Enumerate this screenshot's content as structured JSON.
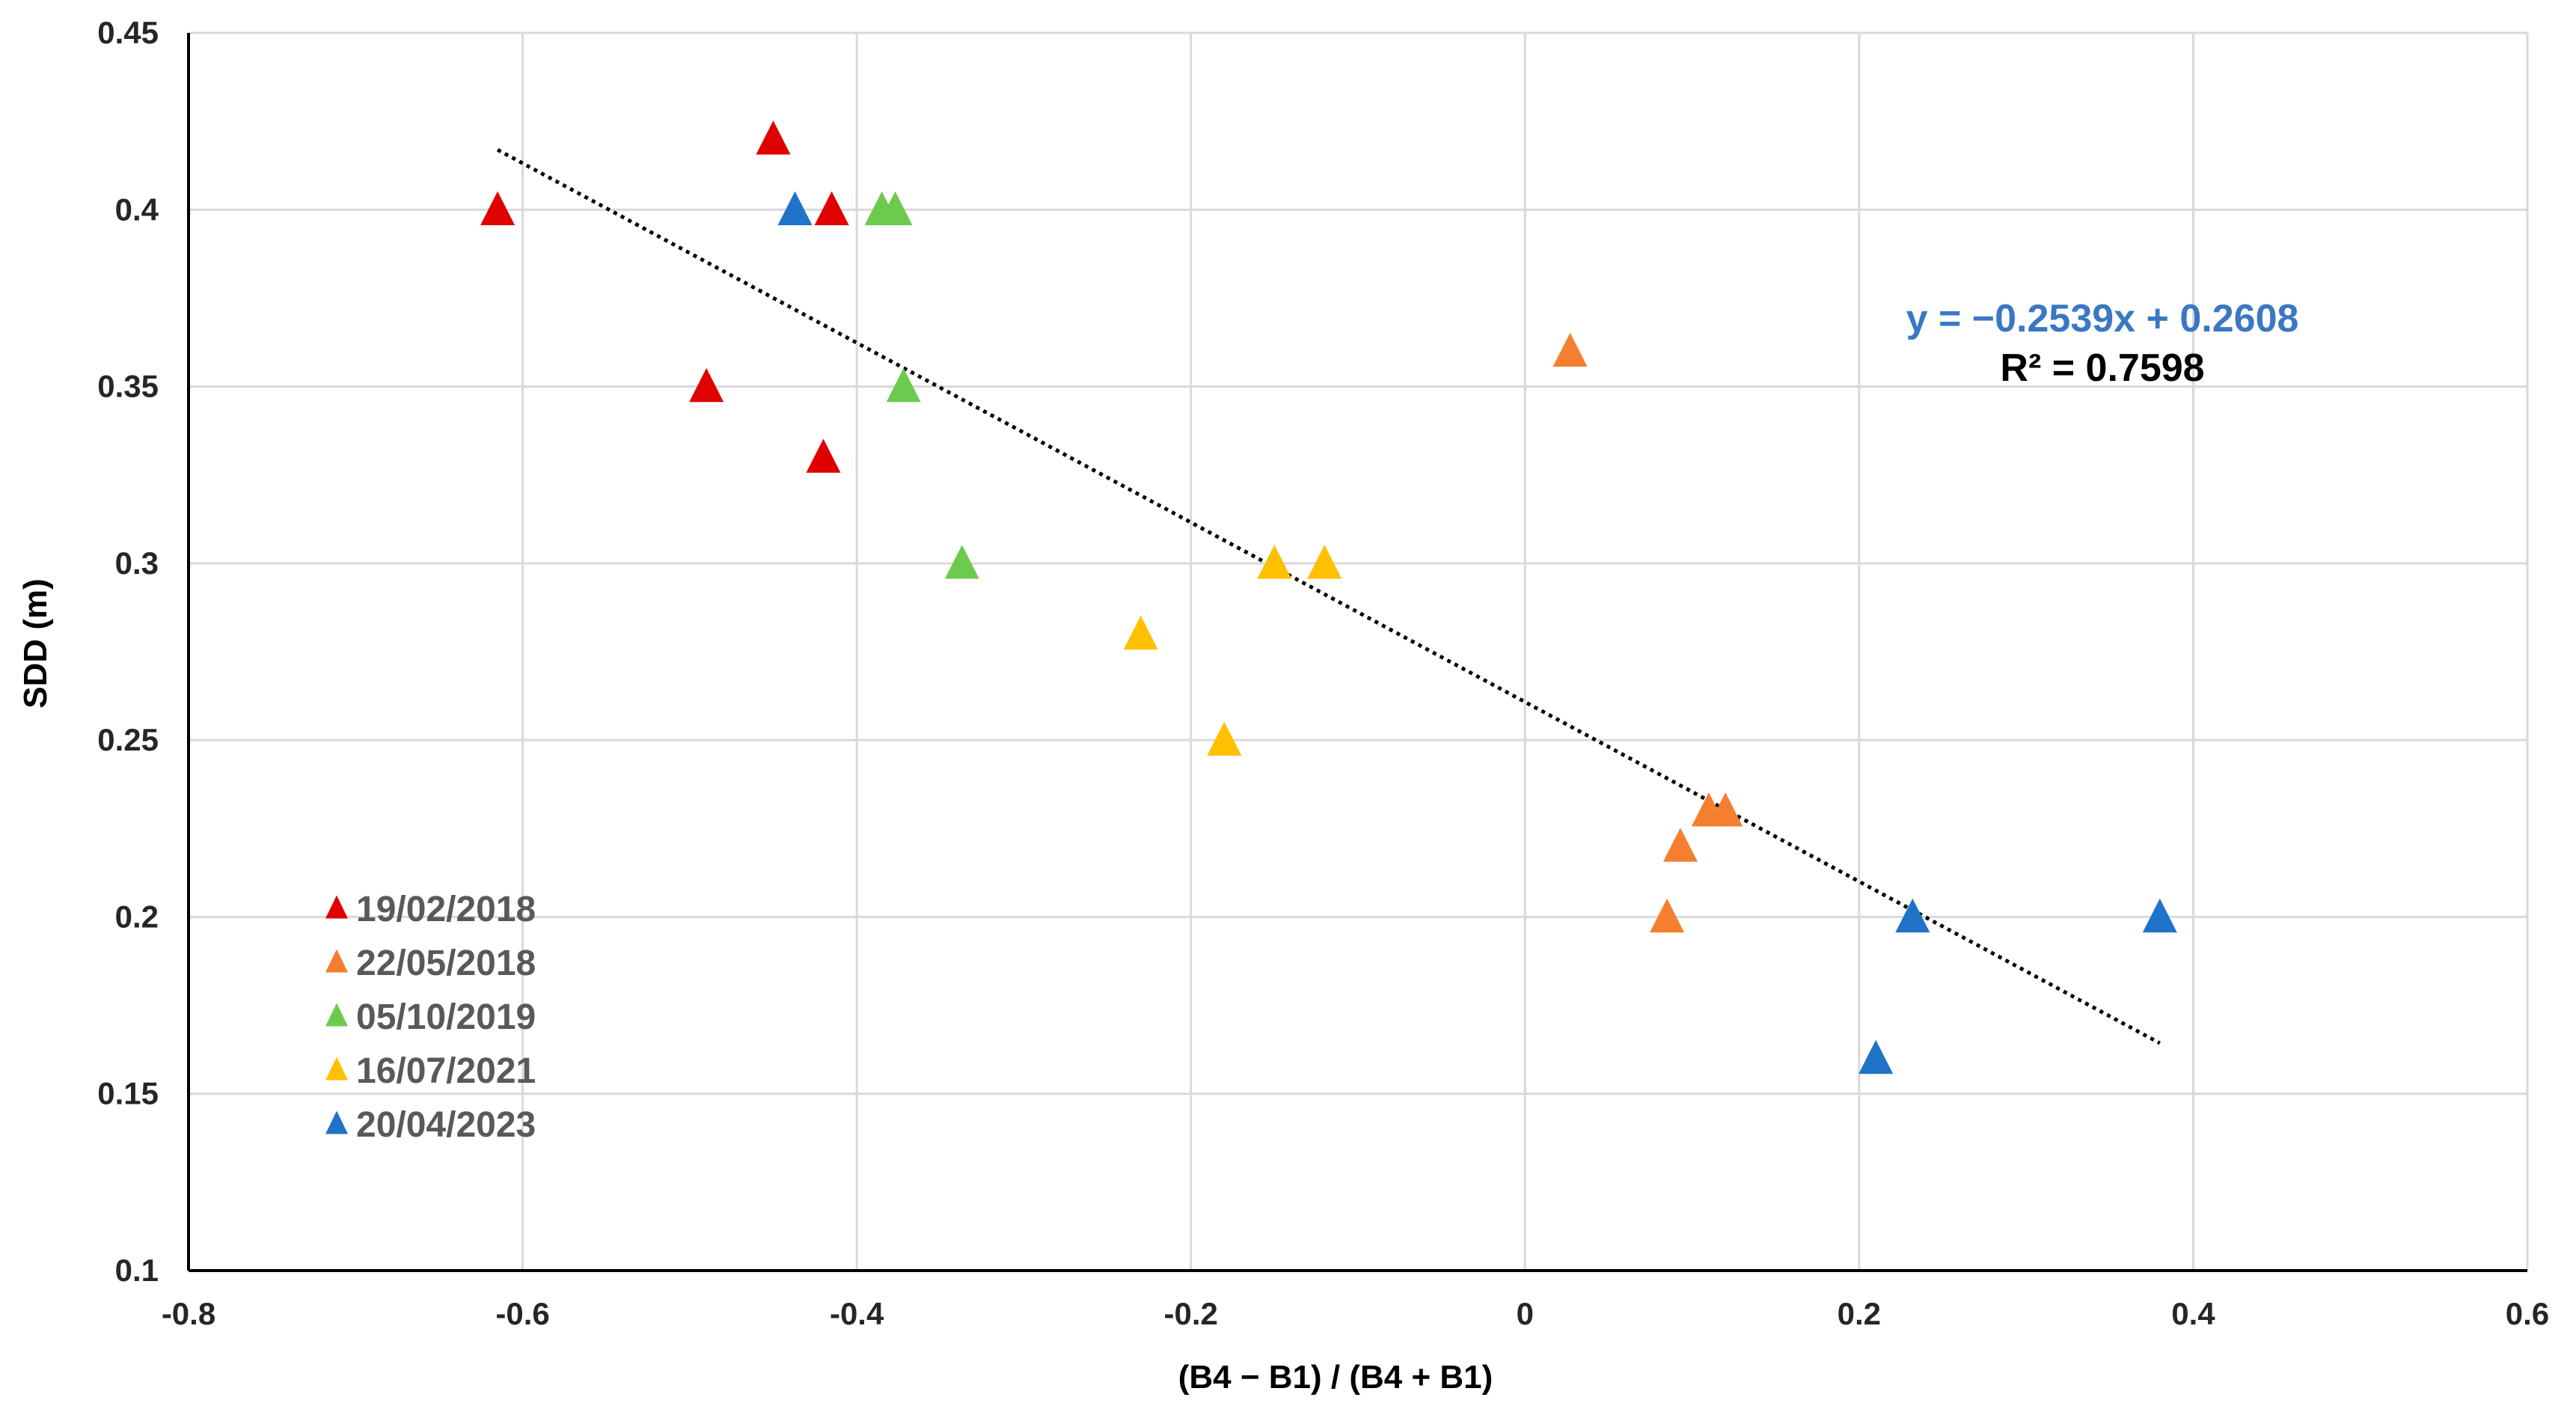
{
  "chart_data": {
    "type": "scatter",
    "title": "",
    "xlabel": "(B4 − B1) / (B4 + B1)",
    "ylabel": "SDD (m)",
    "xlim": [
      -0.8,
      0.6
    ],
    "ylim": [
      0.1,
      0.45
    ],
    "x_ticks": [
      -0.8,
      -0.6,
      -0.4,
      -0.2,
      0,
      0.2,
      0.4,
      0.6
    ],
    "x_tick_labels": [
      "-0.8",
      "-0.6",
      "-0.4",
      "-0.2",
      "0",
      "0.2",
      "0.4",
      "0.6"
    ],
    "y_ticks": [
      0.1,
      0.15,
      0.2,
      0.25,
      0.3,
      0.35,
      0.4,
      0.45
    ],
    "y_tick_labels": [
      "0.1",
      "0.15",
      "0.2",
      "0.25",
      "0.3",
      "0.35",
      "0.4",
      "0.45"
    ],
    "grid": true,
    "legend_position": "bottom-left",
    "marker": "triangle",
    "series": [
      {
        "name": "19/02/2018",
        "color": "#E00000",
        "points": [
          [
            -0.615,
            0.4
          ],
          [
            -0.45,
            0.42
          ],
          [
            -0.415,
            0.4
          ],
          [
            -0.49,
            0.35
          ],
          [
            -0.42,
            0.33
          ]
        ]
      },
      {
        "name": "22/05/2018",
        "color": "#F57E2F",
        "points": [
          [
            0.027,
            0.36
          ],
          [
            0.11,
            0.23
          ],
          [
            0.12,
            0.23
          ],
          [
            0.093,
            0.22
          ],
          [
            0.085,
            0.2
          ]
        ]
      },
      {
        "name": "05/10/2019",
        "color": "#6CCB4F",
        "points": [
          [
            -0.385,
            0.4
          ],
          [
            -0.377,
            0.4
          ],
          [
            -0.372,
            0.35
          ],
          [
            -0.337,
            0.3
          ]
        ]
      },
      {
        "name": "16/07/2021",
        "color": "#FFC000",
        "points": [
          [
            -0.15,
            0.3
          ],
          [
            -0.12,
            0.3
          ],
          [
            -0.23,
            0.28
          ],
          [
            -0.18,
            0.25
          ]
        ]
      },
      {
        "name": "20/04/2023",
        "color": "#1F73C8",
        "points": [
          [
            -0.437,
            0.4
          ],
          [
            0.232,
            0.2
          ],
          [
            0.38,
            0.2
          ],
          [
            0.21,
            0.16
          ]
        ]
      }
    ],
    "trendline": {
      "type": "linear",
      "slope": -0.2539,
      "intercept": 0.2608,
      "x_range": [
        -0.615,
        0.38
      ],
      "style": "dotted",
      "color": "#000000"
    },
    "annotations": {
      "equation": "y = −0.2539x + 0.2608",
      "equation_color": "#3A78C4",
      "r_squared": "R² = 0.7598",
      "r_squared_color": "#000000"
    }
  }
}
